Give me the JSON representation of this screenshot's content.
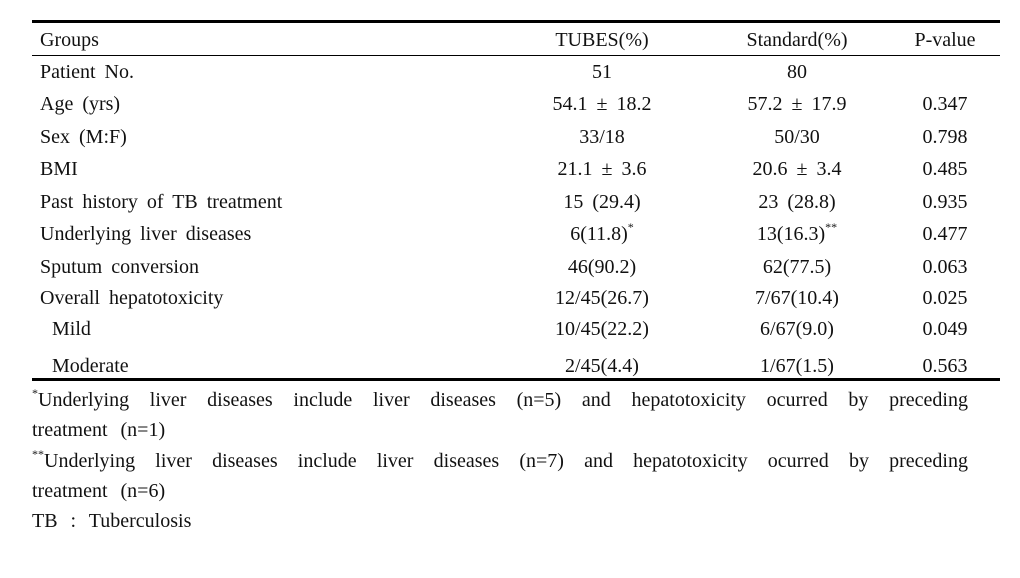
{
  "table": {
    "header": [
      "Groups",
      "TUBES(%)",
      "Standard(%)",
      "P-value"
    ],
    "rows": [
      [
        "Patient No.",
        "51",
        "80",
        null
      ],
      [
        "Age (yrs)",
        "54.1 ± 18.2",
        "57.2 ± 17.9",
        "0.347"
      ],
      [
        "Sex (M:F)",
        "33/18",
        "50/30",
        "0.798"
      ],
      [
        "BMI",
        "21.1 ± 3.6",
        "20.6 ± 3.4",
        "0.485"
      ],
      [
        "Past history of TB treatment",
        "15 (29.4)",
        "23 (28.8)",
        "0.935"
      ],
      [
        "Underlying liver diseases",
        {
          "text": "6(11.8)",
          "sup": "*"
        },
        {
          "text": "13(16.3)",
          "sup": "**"
        },
        "0.477"
      ],
      [
        "Sputum conversion",
        "46(90.2)",
        "62(77.5)",
        "0.063"
      ],
      [
        "Overall hepatotoxicity",
        "12/45(26.7)",
        "7/67(10.4)",
        "0.025"
      ],
      [
        "Mild",
        "10/45(22.2)",
        "6/67(9.0)",
        "0.049"
      ],
      [
        "Moderate",
        "2/45(4.4)",
        "1/67(1.5)",
        "0.563"
      ]
    ],
    "indented_rows": [
      8,
      9
    ]
  },
  "notes": [
    {
      "mark": "*",
      "text": "Underlying liver diseases include liver diseases (n=5) and hepatotoxicity ocurred by preceding treatment (n=1)"
    },
    {
      "mark": "**",
      "text": "Underlying liver diseases include liver diseases (n=7) and hepatotoxicity ocurred by preceding treatment (n=6)"
    },
    {
      "mark": null,
      "text": "TB : Tuberculosis"
    }
  ]
}
